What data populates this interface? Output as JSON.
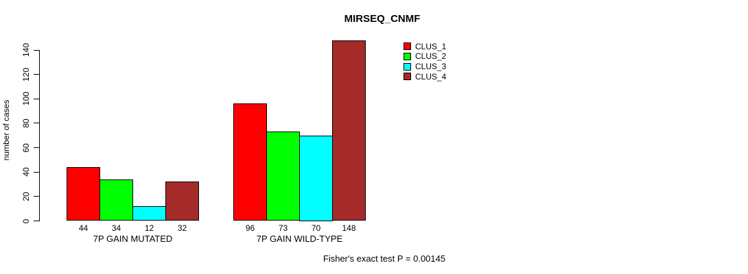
{
  "chart_data": {
    "type": "bar",
    "title": "MIRSEQ_CNMF",
    "categories": [
      "7P GAIN MUTATED",
      "7P GAIN WILD-TYPE"
    ],
    "series": [
      {
        "name": "CLUS_1",
        "color": "#ff0000",
        "values": [
          44,
          96
        ]
      },
      {
        "name": "CLUS_2",
        "color": "#00ff00",
        "values": [
          34,
          73
        ]
      },
      {
        "name": "CLUS_3",
        "color": "#00ffff",
        "values": [
          12,
          70
        ]
      },
      {
        "name": "CLUS_4",
        "color": "#a52a2a",
        "values": [
          32,
          148
        ]
      }
    ],
    "xlabel": "",
    "ylabel": "number of cases",
    "ylim": [
      0,
      140
    ],
    "yticks": [
      0,
      20,
      40,
      60,
      80,
      100,
      120,
      140
    ],
    "show_value_labels": true,
    "grid": false,
    "legend": {
      "entries": [
        "CLUS_1",
        "CLUS_2",
        "CLUS_3",
        "CLUS_4"
      ],
      "position": "inside-top-center"
    },
    "annotation": "Fisher's exact test P = 0.00145",
    "bar_border_color": "#000000",
    "background_color": "#ffffff"
  }
}
